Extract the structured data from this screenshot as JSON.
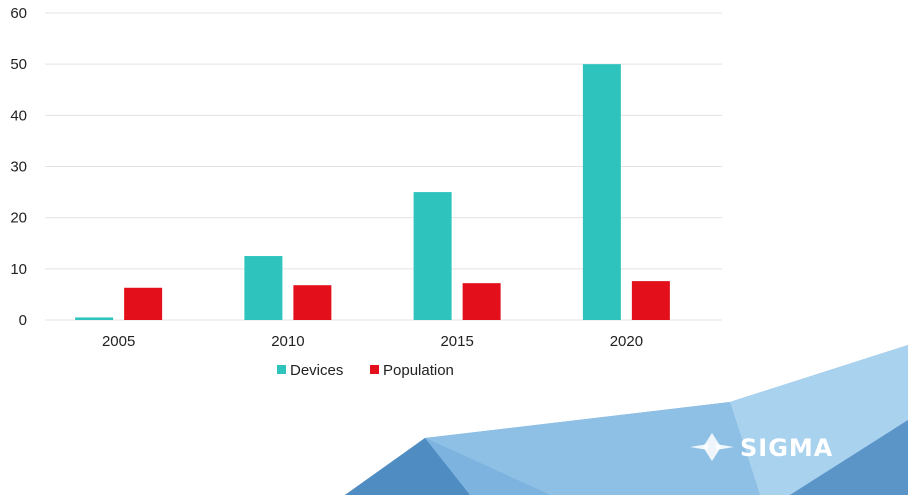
{
  "colors": {
    "devices": "#2ec4bd",
    "population": "#e3101b",
    "background_poly_dark": "#5b95c8",
    "background_poly_mid": "#77aedb",
    "background_poly_light": "#a7d0ee"
  },
  "chart_data": {
    "type": "bar",
    "categories": [
      "2005",
      "2010",
      "2015",
      "2020"
    ],
    "series": [
      {
        "name": "Devices",
        "values": [
          0.5,
          12.5,
          25,
          50
        ]
      },
      {
        "name": "Population",
        "values": [
          6.3,
          6.8,
          7.2,
          7.6
        ]
      }
    ],
    "ylim": [
      0,
      60
    ],
    "yticks": [
      "0",
      "10",
      "20",
      "30",
      "40",
      "50",
      "60"
    ],
    "grid": true,
    "legend_position": "bottom"
  },
  "logo": {
    "name": "SIGMA",
    "icon": "sigma-diamond-logo-icon"
  }
}
